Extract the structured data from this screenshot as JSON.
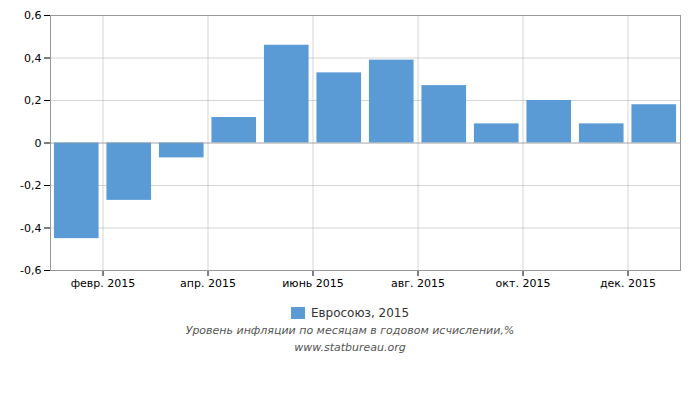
{
  "chart_data": {
    "type": "bar",
    "x": [
      1,
      2,
      3,
      4,
      5,
      6,
      7,
      8,
      9,
      10,
      11,
      12
    ],
    "series": [
      {
        "name": "Евросоюз, 2015",
        "color": "#5b9bd5",
        "values": [
          -0.45,
          -0.27,
          -0.07,
          0.12,
          0.46,
          0.33,
          0.39,
          0.27,
          0.09,
          0.2,
          0.09,
          0.18
        ]
      }
    ],
    "xlim": [
      0.5,
      12.5
    ],
    "xticks": [
      {
        "value": 1.5,
        "label": "февр. 2015"
      },
      {
        "value": 3.5,
        "label": "апр. 2015"
      },
      {
        "value": 5.5,
        "label": "июнь 2015"
      },
      {
        "value": 7.5,
        "label": "авг. 2015"
      },
      {
        "value": 9.5,
        "label": "окт. 2015"
      },
      {
        "value": 11.5,
        "label": "дек. 2015"
      }
    ],
    "ylim": [
      -0.6,
      0.6
    ],
    "yticks": [
      {
        "value": -0.6,
        "label": "-0,6"
      },
      {
        "value": -0.4,
        "label": "-0,4"
      },
      {
        "value": -0.2,
        "label": "-0,2"
      },
      0,
      {
        "value": 0.2,
        "label": "0,2"
      },
      {
        "value": 0.4,
        "label": "0,4"
      },
      {
        "value": 0.6,
        "label": "0,6"
      }
    ],
    "grid": true,
    "legend": "bottom",
    "annotations": [
      "Уровень инфляции по месяцам в годовом исчислении,%",
      "www.statbureau.org"
    ]
  }
}
